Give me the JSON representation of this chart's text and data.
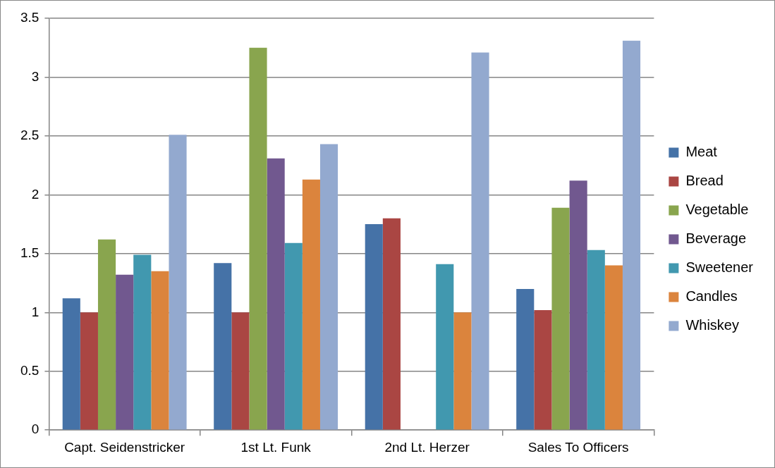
{
  "chart_data": {
    "type": "bar",
    "categories": [
      "Capt. Seidenstricker",
      "1st Lt. Funk",
      "2nd Lt. Herzer",
      "Sales To Officers"
    ],
    "series": [
      {
        "name": "Meat",
        "color": "#4572a7",
        "values": [
          1.12,
          1.42,
          1.75,
          1.2
        ]
      },
      {
        "name": "Bread",
        "color": "#aa4643",
        "values": [
          1.0,
          1.0,
          1.8,
          1.02
        ]
      },
      {
        "name": "Vegetable",
        "color": "#89a54e",
        "values": [
          1.62,
          3.25,
          null,
          1.89
        ]
      },
      {
        "name": "Beverage",
        "color": "#71588f",
        "values": [
          1.32,
          2.31,
          null,
          2.12
        ]
      },
      {
        "name": "Sweetener",
        "color": "#4198af",
        "values": [
          1.49,
          1.59,
          1.41,
          1.53
        ]
      },
      {
        "name": "Candles",
        "color": "#db843d",
        "values": [
          1.35,
          2.13,
          1.0,
          1.4
        ]
      },
      {
        "name": "Whiskey",
        "color": "#93a9cf",
        "values": [
          2.51,
          2.43,
          3.21,
          3.31
        ]
      }
    ],
    "ylim": [
      0,
      3.5
    ],
    "yticks": [
      0,
      0.5,
      1,
      1.5,
      2,
      2.5,
      3,
      3.5
    ],
    "grid": "y",
    "legend": "right"
  }
}
